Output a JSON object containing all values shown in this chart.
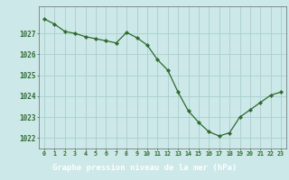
{
  "x": [
    0,
    1,
    2,
    3,
    4,
    5,
    6,
    7,
    8,
    9,
    10,
    11,
    12,
    13,
    14,
    15,
    16,
    17,
    18,
    19,
    20,
    21,
    22,
    23
  ],
  "y": [
    1027.7,
    1027.45,
    1027.1,
    1027.0,
    1026.85,
    1026.75,
    1026.65,
    1026.55,
    1027.05,
    1026.8,
    1026.45,
    1025.75,
    1025.25,
    1024.2,
    1023.3,
    1022.75,
    1022.3,
    1022.1,
    1022.25,
    1023.0,
    1023.35,
    1023.7,
    1024.05,
    1024.2
  ],
  "ylim_min": 1021.5,
  "ylim_max": 1028.3,
  "yticks": [
    1022,
    1023,
    1024,
    1025,
    1026,
    1027
  ],
  "xticks": [
    0,
    1,
    2,
    3,
    4,
    5,
    6,
    7,
    8,
    9,
    10,
    11,
    12,
    13,
    14,
    15,
    16,
    17,
    18,
    19,
    20,
    21,
    22,
    23
  ],
  "xlabel": "Graphe pression niveau de la mer (hPa)",
  "line_color": "#2d6a2d",
  "marker_color": "#2d6a2d",
  "bg_color": "#cce8e8",
  "grid_color": "#aacece",
  "axis_color": "#555555",
  "tick_color": "#2d6a2d",
  "xlabel_color": "#2d6a2d",
  "xlabel_bg": "#4a8a3a"
}
